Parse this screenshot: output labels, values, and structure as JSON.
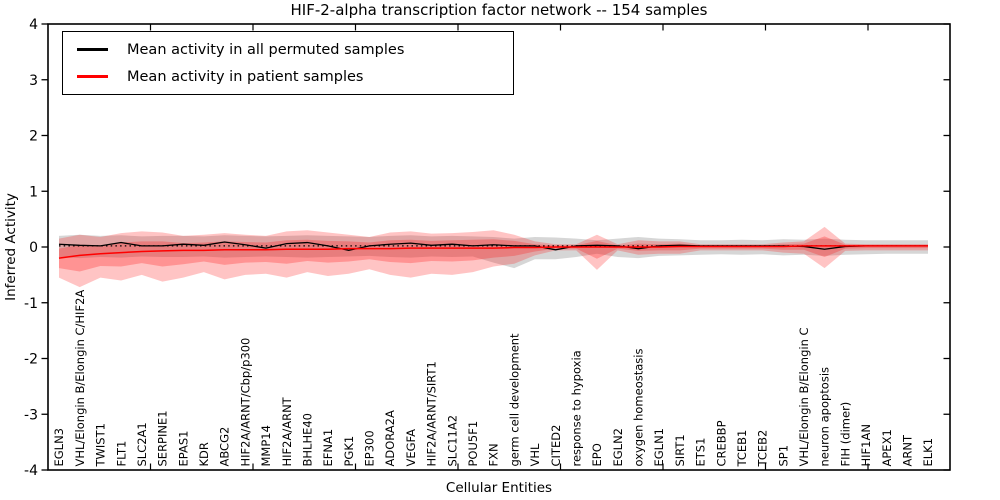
{
  "figure": {
    "title": "HIF-2-alpha transcription factor network -- 154 samples",
    "xlabel": "Cellular Entities",
    "ylabel": "Inferred Activity"
  },
  "legend": {
    "position": "upper left",
    "entries": [
      {
        "label": "Mean activity in all permuted samples",
        "color": "#000000"
      },
      {
        "label": "Mean activity in patient samples",
        "color": "#ff0000"
      }
    ]
  },
  "chart_data": {
    "type": "line",
    "title": "HIF-2-alpha transcription factor network -- 154 samples",
    "xlabel": "Cellular Entities",
    "ylabel": "Inferred Activity",
    "ylim": [
      -4,
      4
    ],
    "yticks": [
      4,
      3,
      2,
      1,
      0,
      -1,
      -2,
      -3,
      -4
    ],
    "grid": false,
    "legend_position": "upper left",
    "categories": [
      "EGLN3",
      "VHL/Elongin B/Elongin C/HIF2A",
      "TWIST1",
      "FLT1",
      "SLC2A1",
      "SERPINE1",
      "EPAS1",
      "KDR",
      "ABCG2",
      "HIF2A/ARNT/Cbp/p300",
      "MMP14",
      "HIF2A/ARNT",
      "BHLHE40",
      "EFNA1",
      "PGK1",
      "EP300",
      "ADORA2A",
      "VEGFA",
      "HIF2A/ARNT/SIRT1",
      "SLC11A2",
      "POU5F1",
      "FXN",
      "germ cell development",
      "VHL",
      "CITED2",
      "response to hypoxia",
      "EPO",
      "EGLN2",
      "oxygen homeostasis",
      "EGLN1",
      "SIRT1",
      "ETS1",
      "CREBBP",
      "TCEB1",
      "TCEB2",
      "SP1",
      "VHL/Elongin B/Elongin C",
      "neuron apoptosis",
      "FIH (dimer)",
      "HIF1AN",
      "APEX1",
      "ARNT",
      "ELK1"
    ],
    "series": [
      {
        "name": "Mean activity in all permuted samples",
        "color": "#000000",
        "line_style": "solid",
        "values": [
          0.05,
          0.03,
          0.02,
          0.08,
          0.02,
          0.02,
          0.05,
          0.03,
          0.09,
          0.04,
          -0.02,
          0.06,
          0.08,
          0.02,
          -0.06,
          0.02,
          0.05,
          0.07,
          0.03,
          0.05,
          0.02,
          0.04,
          0.02,
          0.02,
          -0.05,
          0.02,
          0.03,
          0.02,
          -0.03,
          0.02,
          0.03,
          0.02,
          0.02,
          0.02,
          0.02,
          0.02,
          0.01,
          -0.04,
          0.01,
          0.02,
          0.02,
          0.02,
          0.02
        ]
      },
      {
        "name": "Permuted median (dotted)",
        "color": "#000000",
        "line_style": "dotted",
        "flat_value": 0.02
      },
      {
        "name": "Mean activity in patient samples",
        "color": "#ff0000",
        "line_style": "solid",
        "values": [
          -0.2,
          -0.15,
          -0.12,
          -0.1,
          -0.08,
          -0.07,
          -0.06,
          -0.06,
          -0.05,
          -0.05,
          -0.05,
          -0.04,
          -0.04,
          -0.04,
          -0.03,
          -0.03,
          -0.03,
          -0.02,
          -0.02,
          -0.02,
          -0.02,
          -0.02,
          -0.01,
          -0.01,
          0.0,
          0.0,
          0.0,
          0.0,
          0.0,
          0.0,
          0.01,
          0.01,
          0.01,
          0.01,
          0.01,
          0.01,
          0.02,
          0.02,
          0.02,
          0.02,
          0.02,
          0.02,
          0.02
        ]
      }
    ],
    "bands": [
      {
        "name": "permuted-samples-range",
        "fill": "rgba(128,128,128,0.32)",
        "upper": [
          0.2,
          0.22,
          0.2,
          0.21,
          0.19,
          0.2,
          0.2,
          0.19,
          0.21,
          0.2,
          0.19,
          0.2,
          0.21,
          0.2,
          0.19,
          0.18,
          0.2,
          0.21,
          0.19,
          0.2,
          0.19,
          0.18,
          0.15,
          0.18,
          0.17,
          0.15,
          0.12,
          0.15,
          0.18,
          0.15,
          0.14,
          0.12,
          0.12,
          0.13,
          0.12,
          0.14,
          0.13,
          0.15,
          0.13,
          0.12,
          0.12,
          0.12,
          0.12
        ],
        "lower": [
          -0.18,
          -0.2,
          -0.18,
          -0.19,
          -0.17,
          -0.18,
          -0.18,
          -0.17,
          -0.19,
          -0.18,
          -0.17,
          -0.18,
          -0.19,
          -0.18,
          -0.17,
          -0.16,
          -0.18,
          -0.19,
          -0.17,
          -0.18,
          -0.17,
          -0.28,
          -0.38,
          -0.22,
          -0.22,
          -0.18,
          -0.12,
          -0.18,
          -0.2,
          -0.16,
          -0.15,
          -0.14,
          -0.13,
          -0.14,
          -0.13,
          -0.15,
          -0.14,
          -0.16,
          -0.14,
          -0.13,
          -0.12,
          -0.12,
          -0.12
        ]
      },
      {
        "name": "patient-samples-outer-band",
        "fill": "rgba(255,20,20,0.25)",
        "upper": [
          0.15,
          0.22,
          0.18,
          0.25,
          0.28,
          0.26,
          0.2,
          0.22,
          0.25,
          0.22,
          0.2,
          0.28,
          0.3,
          0.26,
          0.22,
          0.18,
          0.26,
          0.28,
          0.24,
          0.25,
          0.27,
          0.3,
          0.22,
          0.1,
          0.05,
          0.05,
          0.22,
          0.05,
          0.12,
          0.1,
          0.1,
          0.05,
          0.05,
          0.05,
          0.05,
          0.08,
          0.1,
          0.36,
          0.06,
          0.05,
          0.05,
          0.05,
          0.05
        ],
        "lower": [
          -0.55,
          -0.72,
          -0.55,
          -0.6,
          -0.5,
          -0.62,
          -0.55,
          -0.45,
          -0.58,
          -0.5,
          -0.48,
          -0.55,
          -0.45,
          -0.52,
          -0.48,
          -0.4,
          -0.5,
          -0.55,
          -0.48,
          -0.5,
          -0.45,
          -0.35,
          -0.3,
          -0.15,
          -0.06,
          -0.06,
          -0.41,
          -0.06,
          -0.14,
          -0.12,
          -0.12,
          -0.06,
          -0.06,
          -0.06,
          -0.06,
          -0.1,
          -0.12,
          -0.38,
          -0.07,
          -0.06,
          -0.06,
          -0.06,
          -0.06
        ]
      },
      {
        "name": "patient-samples-inner-band",
        "fill": "rgba(255,20,20,0.28)",
        "upper": [
          -0.03,
          0.04,
          0.03,
          0.08,
          0.1,
          0.1,
          0.07,
          0.08,
          0.1,
          0.09,
          0.08,
          0.12,
          0.13,
          0.11,
          0.1,
          0.08,
          0.12,
          0.13,
          0.11,
          0.12,
          0.13,
          0.14,
          0.11,
          0.05,
          0.03,
          0.03,
          0.11,
          0.03,
          0.06,
          0.05,
          0.06,
          0.03,
          0.03,
          0.03,
          0.03,
          0.05,
          0.06,
          0.19,
          0.04,
          0.04,
          0.04,
          0.04,
          0.04
        ],
        "lower": [
          -0.38,
          -0.44,
          -0.34,
          -0.35,
          -0.29,
          -0.35,
          -0.31,
          -0.26,
          -0.32,
          -0.28,
          -0.27,
          -0.3,
          -0.25,
          -0.28,
          -0.26,
          -0.22,
          -0.27,
          -0.29,
          -0.25,
          -0.26,
          -0.24,
          -0.19,
          -0.16,
          -0.08,
          -0.03,
          -0.03,
          -0.21,
          -0.03,
          -0.07,
          -0.06,
          -0.06,
          -0.03,
          -0.03,
          -0.03,
          -0.03,
          -0.05,
          -0.05,
          -0.18,
          -0.03,
          -0.02,
          -0.02,
          -0.02,
          -0.02
        ]
      }
    ]
  }
}
